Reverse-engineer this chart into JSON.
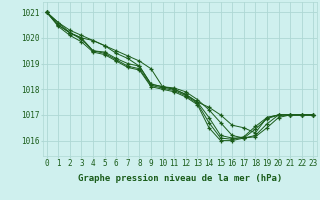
{
  "background_color": "#cff0ee",
  "grid_color": "#aed8d4",
  "line_color": "#1a5c1a",
  "marker_color": "#1a5c1a",
  "xlabel": "Graphe pression niveau de la mer (hPa)",
  "xlabel_fontsize": 6.5,
  "tick_fontsize": 5.5,
  "ylim": [
    1015.4,
    1021.4
  ],
  "xlim": [
    -0.3,
    23.3
  ],
  "yticks": [
    1016,
    1017,
    1018,
    1019,
    1020,
    1021
  ],
  "xticks": [
    0,
    1,
    2,
    3,
    4,
    5,
    6,
    7,
    8,
    9,
    10,
    11,
    12,
    13,
    14,
    15,
    16,
    17,
    18,
    19,
    20,
    21,
    22,
    23
  ],
  "series": [
    [
      1021.0,
      1020.6,
      1020.2,
      1020.0,
      1019.9,
      1019.7,
      1019.5,
      1019.3,
      1019.1,
      1018.8,
      1018.1,
      1018.0,
      1017.8,
      1017.5,
      1017.3,
      1017.0,
      1016.6,
      1016.5,
      1016.3,
      1016.9,
      1017.0,
      1017.0,
      1017.0,
      1017.0
    ],
    [
      1021.0,
      1020.6,
      1020.3,
      1020.1,
      1019.9,
      1019.7,
      1019.4,
      1019.2,
      1018.9,
      1018.2,
      1018.1,
      1018.05,
      1017.9,
      1017.6,
      1017.2,
      1016.7,
      1016.2,
      1016.1,
      1016.15,
      1016.5,
      1016.9,
      1017.0,
      1017.0,
      1017.0
    ],
    [
      1021.0,
      1020.5,
      1020.2,
      1020.0,
      1019.5,
      1019.45,
      1019.2,
      1019.0,
      1018.9,
      1018.2,
      1018.1,
      1018.0,
      1017.8,
      1017.5,
      1016.9,
      1016.2,
      1016.1,
      1016.1,
      1016.2,
      1016.65,
      1017.0,
      1017.0,
      1017.0,
      1017.0
    ],
    [
      1021.0,
      1020.5,
      1020.2,
      1019.95,
      1019.5,
      1019.4,
      1019.15,
      1018.9,
      1018.8,
      1018.15,
      1018.05,
      1017.95,
      1017.75,
      1017.45,
      1016.7,
      1016.1,
      1016.05,
      1016.15,
      1016.55,
      1016.9,
      1017.0,
      1017.0,
      1017.0,
      1017.0
    ],
    [
      1021.0,
      1020.45,
      1020.1,
      1019.85,
      1019.45,
      1019.35,
      1019.1,
      1018.85,
      1018.75,
      1018.1,
      1018.0,
      1017.9,
      1017.7,
      1017.4,
      1016.5,
      1016.0,
      1016.0,
      1016.1,
      1016.45,
      1016.85,
      1017.0,
      1017.0,
      1017.0,
      1017.0
    ]
  ]
}
